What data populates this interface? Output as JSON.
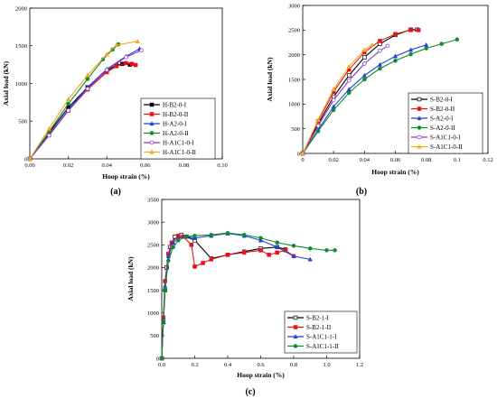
{
  "chart_data": [
    {
      "type": "line",
      "panel_label": "(a)",
      "xlabel": "Hoop strain (%)",
      "ylabel": "Axial load (kN)",
      "xlim": [
        0,
        0.1
      ],
      "ylim": [
        0,
        2000
      ],
      "xticks": [
        "0.00",
        "0.02",
        "0.04",
        "0.06",
        "0.08",
        "0.10"
      ],
      "yticks": [
        "0",
        "500",
        "1000",
        "1500",
        "2000"
      ],
      "legend_position": "right",
      "series": [
        {
          "name": "H-B2-0-I",
          "color": "#000000",
          "marker": "square",
          "x": [
            0,
            0.01,
            0.02,
            0.03,
            0.04,
            0.045,
            0.048,
            0.052
          ],
          "y": [
            0,
            350,
            680,
            950,
            1170,
            1240,
            1260,
            1250
          ]
        },
        {
          "name": "H-B2-0-II",
          "color": "#e8101a",
          "marker": "square",
          "x": [
            0,
            0.01,
            0.02,
            0.03,
            0.04,
            0.045,
            0.05,
            0.053,
            0.055
          ],
          "y": [
            0,
            330,
            640,
            920,
            1150,
            1230,
            1270,
            1260,
            1245
          ]
        },
        {
          "name": "H-A2-0-I",
          "color": "#1f3fdc",
          "marker": "triangle",
          "x": [
            0,
            0.01,
            0.02,
            0.03,
            0.04,
            0.05,
            0.057
          ],
          "y": [
            0,
            320,
            650,
            950,
            1190,
            1360,
            1460
          ]
        },
        {
          "name": "H-A2-0-II",
          "color": "#128a2e",
          "marker": "circle",
          "x": [
            0,
            0.01,
            0.02,
            0.03,
            0.038,
            0.043,
            0.046
          ],
          "y": [
            0,
            360,
            730,
            1060,
            1320,
            1450,
            1520
          ]
        },
        {
          "name": "H-A1C1-0-I",
          "color": "#8a32c8",
          "marker": "circle-open",
          "x": [
            0,
            0.01,
            0.02,
            0.03,
            0.04,
            0.05,
            0.058
          ],
          "y": [
            0,
            310,
            640,
            930,
            1180,
            1350,
            1440
          ]
        },
        {
          "name": "H-A1C1-0-II",
          "color": "#f2a91c",
          "marker": "triangle",
          "x": [
            0,
            0.01,
            0.02,
            0.03,
            0.04,
            0.045,
            0.056
          ],
          "y": [
            0,
            400,
            790,
            1110,
            1390,
            1510,
            1560
          ]
        }
      ]
    },
    {
      "type": "line",
      "panel_label": "(b)",
      "xlabel": "Hoop strain (%)",
      "ylabel": "Axial load (kN)",
      "xlim": [
        0,
        0.12
      ],
      "ylim": [
        0,
        3000
      ],
      "xticks": [
        "0",
        "0.02",
        "0.04",
        "0.06",
        "0.08",
        "0.1",
        "0.12"
      ],
      "yticks": [
        "0",
        "500",
        "1000",
        "1500",
        "2000",
        "2500",
        "3000"
      ],
      "legend_position": "bottom-right",
      "series": [
        {
          "name": "S-B2-0-I",
          "color": "#000000",
          "marker": "square-open",
          "x": [
            0,
            0.01,
            0.02,
            0.03,
            0.04,
            0.05,
            0.06,
            0.07,
            0.074
          ],
          "y": [
            0,
            600,
            1150,
            1580,
            1950,
            2220,
            2400,
            2510,
            2510
          ]
        },
        {
          "name": "S-B2-0-II",
          "color": "#e8101a",
          "marker": "square",
          "x": [
            0,
            0.01,
            0.02,
            0.03,
            0.04,
            0.05,
            0.06,
            0.07,
            0.075
          ],
          "y": [
            0,
            650,
            1250,
            1700,
            2050,
            2280,
            2420,
            2500,
            2500
          ]
        },
        {
          "name": "S-A2-0-I",
          "color": "#1f3fdc",
          "marker": "triangle",
          "x": [
            0,
            0.01,
            0.02,
            0.03,
            0.04,
            0.05,
            0.06,
            0.07,
            0.08
          ],
          "y": [
            0,
            480,
            950,
            1300,
            1580,
            1800,
            1970,
            2100,
            2200
          ]
        },
        {
          "name": "S-A2-0-II",
          "color": "#128a2e",
          "marker": "circle",
          "x": [
            0,
            0.01,
            0.02,
            0.03,
            0.04,
            0.05,
            0.06,
            0.07,
            0.08,
            0.09,
            0.1
          ],
          "y": [
            0,
            450,
            880,
            1230,
            1500,
            1720,
            1880,
            2010,
            2130,
            2220,
            2310
          ]
        },
        {
          "name": "S-A1C1-0-I",
          "color": "#8a32c8",
          "marker": "circle-open",
          "x": [
            0,
            0.01,
            0.02,
            0.03,
            0.04,
            0.05,
            0.055
          ],
          "y": [
            0,
            560,
            1080,
            1480,
            1820,
            2080,
            2180
          ]
        },
        {
          "name": "S-A1C1-0-II",
          "color": "#f2a91c",
          "marker": "triangle",
          "x": [
            0,
            0.01,
            0.02,
            0.03,
            0.04,
            0.045
          ],
          "y": [
            0,
            680,
            1300,
            1760,
            2100,
            2200
          ]
        }
      ]
    },
    {
      "type": "line",
      "panel_label": "(c)",
      "xlabel": "Hoop strain (%)",
      "ylabel": "Axial load (kN)",
      "xlim": [
        0,
        1.2
      ],
      "ylim": [
        0,
        3500
      ],
      "xticks": [
        "0.0",
        "0.2",
        "0.4",
        "0.6",
        "0.8",
        "1.0",
        "1.2"
      ],
      "yticks": [
        "0",
        "500",
        "1000",
        "1500",
        "2000",
        "2500",
        "3000",
        "3500"
      ],
      "legend_position": "bottom-right",
      "series": [
        {
          "name": "S-B2-1-I",
          "color": "#000000",
          "marker": "square-open",
          "x": [
            0,
            0.01,
            0.02,
            0.03,
            0.05,
            0.08,
            0.12,
            0.15,
            0.2,
            0.3,
            0.4,
            0.5,
            0.6,
            0.7,
            0.75
          ],
          "y": [
            0,
            800,
            1500,
            2000,
            2450,
            2680,
            2720,
            2680,
            2600,
            2200,
            2280,
            2350,
            2420,
            2450,
            2400
          ]
        },
        {
          "name": "S-B2-1-II",
          "color": "#e8101a",
          "marker": "square",
          "x": [
            0,
            0.01,
            0.02,
            0.04,
            0.06,
            0.1,
            0.13,
            0.18,
            0.2,
            0.25,
            0.3,
            0.4,
            0.5,
            0.6,
            0.65,
            0.7,
            0.75,
            0.8
          ],
          "y": [
            0,
            900,
            1700,
            2300,
            2550,
            2700,
            2680,
            2500,
            2020,
            2100,
            2180,
            2280,
            2330,
            2380,
            2280,
            2330,
            2380,
            2250
          ]
        },
        {
          "name": "S-A1C1-1-I",
          "color": "#1f3fdc",
          "marker": "triangle",
          "x": [
            0,
            0.01,
            0.02,
            0.04,
            0.07,
            0.1,
            0.15,
            0.2,
            0.3,
            0.4,
            0.5,
            0.6,
            0.7,
            0.8,
            0.9
          ],
          "y": [
            0,
            850,
            1600,
            2250,
            2550,
            2650,
            2680,
            2650,
            2700,
            2750,
            2700,
            2600,
            2450,
            2250,
            2180
          ]
        },
        {
          "name": "S-A1C1-1-II",
          "color": "#128a2e",
          "marker": "circle",
          "x": [
            0,
            0.01,
            0.02,
            0.04,
            0.07,
            0.1,
            0.15,
            0.2,
            0.3,
            0.4,
            0.5,
            0.6,
            0.7,
            0.8,
            0.9,
            1.0,
            1.05
          ],
          "y": [
            0,
            800,
            1500,
            2150,
            2450,
            2600,
            2680,
            2700,
            2720,
            2760,
            2720,
            2650,
            2550,
            2480,
            2420,
            2380,
            2380
          ]
        }
      ]
    }
  ]
}
